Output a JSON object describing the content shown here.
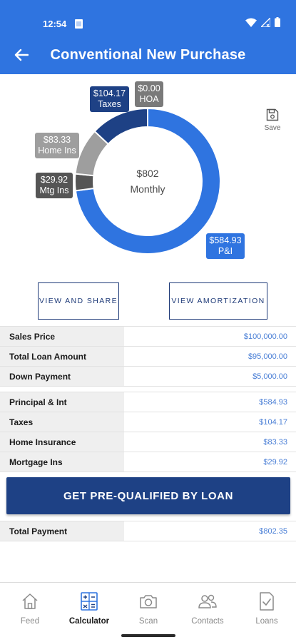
{
  "status": {
    "time": "12:54"
  },
  "header": {
    "title": "Conventional New Purchase"
  },
  "chart_data": {
    "type": "pie",
    "variant": "donut",
    "center_value": "$802",
    "center_label": "Monthly",
    "slices": [
      {
        "label": "P&I",
        "value_text": "$584.93",
        "value": 584.93,
        "color": "#2f74e0"
      },
      {
        "label": "Mtg Ins",
        "value_text": "$29.92",
        "value": 29.92,
        "color": "#555555"
      },
      {
        "label": "Home Ins",
        "value_text": "$83.33",
        "value": 83.33,
        "color": "#9e9e9e"
      },
      {
        "label": "Taxes",
        "value_text": "$104.17",
        "value": 104.17,
        "color": "#1e4185"
      },
      {
        "label": "HOA",
        "value_text": "$0.00",
        "value": 0,
        "color": "#7a7a7a"
      }
    ]
  },
  "save": {
    "label": "Save"
  },
  "actions": {
    "share_label": "VIEW AND SHARE",
    "amortization_label": "VIEW AMORTIZATION"
  },
  "loan_table": [
    {
      "label": "Sales Price",
      "value": "$100,000.00"
    },
    {
      "label": "Total Loan Amount",
      "value": "$95,000.00"
    },
    {
      "label": "Down Payment",
      "value": "$5,000.00"
    }
  ],
  "payment_table": [
    {
      "label": "Principal & Int",
      "value": "$584.93"
    },
    {
      "label": "Taxes",
      "value": "$104.17"
    },
    {
      "label": "Home Insurance",
      "value": "$83.33"
    },
    {
      "label": "Mortgage Ins",
      "value": "$29.92"
    }
  ],
  "cta": {
    "label": "GET PRE-QUALIFIED BY LOAN"
  },
  "total": {
    "label": "Total Payment",
    "value": "$802.35"
  },
  "nav": {
    "items": [
      {
        "label": "Feed",
        "icon": "home-icon"
      },
      {
        "label": "Calculator",
        "icon": "calculator-icon",
        "active": true
      },
      {
        "label": "Scan",
        "icon": "camera-icon"
      },
      {
        "label": "Contacts",
        "icon": "contacts-icon"
      },
      {
        "label": "Loans",
        "icon": "document-check-icon"
      }
    ]
  },
  "colors": {
    "primary": "#2f74e0",
    "dark_blue": "#1e4185",
    "value_text": "#4a7fd6"
  }
}
